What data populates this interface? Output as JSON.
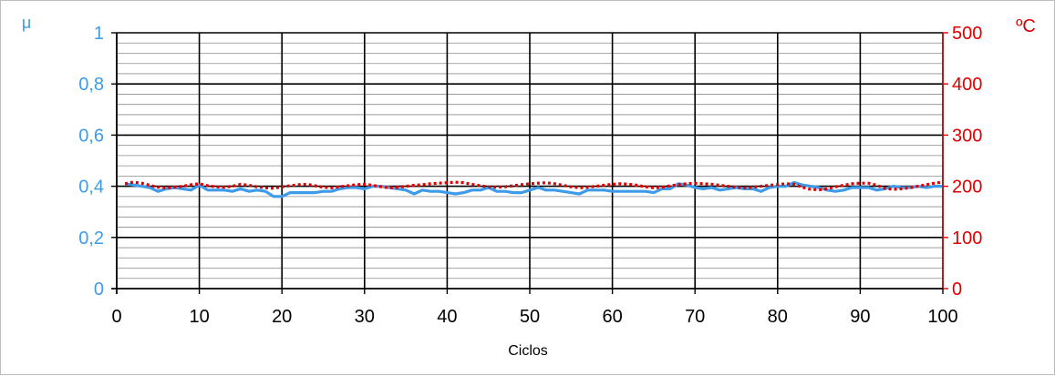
{
  "chart_data": {
    "type": "line",
    "xlabel": "Ciclos",
    "ylabel_left": "μ",
    "ylabel_right": "ºC",
    "xlim": [
      0,
      100
    ],
    "ylim_left": [
      0,
      1
    ],
    "ylim_right": [
      0,
      500
    ],
    "x_ticks": [
      "0",
      "10",
      "20",
      "30",
      "40",
      "50",
      "60",
      "70",
      "80",
      "90",
      "100"
    ],
    "y_left_ticks": [
      "0",
      "0,2",
      "0,4",
      "0,6",
      "0,8",
      "1"
    ],
    "y_right_ticks": [
      "0",
      "100",
      "200",
      "300",
      "400",
      "500"
    ],
    "grid": true,
    "colors": {
      "mu": "#3d9be9",
      "temperature": "#e00000",
      "grid": "#000000"
    },
    "series": [
      {
        "axis": "left",
        "style": "solid",
        "x": [
          1,
          2,
          3,
          4,
          5,
          6,
          7,
          8,
          9,
          10,
          11,
          12,
          13,
          14,
          15,
          16,
          17,
          18,
          19,
          20,
          21,
          22,
          23,
          24,
          25,
          26,
          27,
          28,
          29,
          30,
          31,
          32,
          33,
          34,
          35,
          36,
          37,
          38,
          39,
          40,
          41,
          42,
          43,
          44,
          45,
          46,
          47,
          48,
          49,
          50,
          51,
          52,
          53,
          54,
          55,
          56,
          57,
          58,
          59,
          60,
          61,
          62,
          63,
          64,
          65,
          66,
          67,
          68,
          69,
          70,
          71,
          72,
          73,
          74,
          75,
          76,
          77,
          78,
          79,
          80,
          81,
          82,
          83,
          84,
          85,
          86,
          87,
          88,
          89,
          90,
          91,
          92,
          93,
          94,
          95,
          96,
          97,
          98,
          99,
          100
        ],
        "y": [
          0.41,
          0.405,
          0.4,
          0.395,
          0.38,
          0.39,
          0.395,
          0.39,
          0.385,
          0.405,
          0.385,
          0.385,
          0.385,
          0.38,
          0.39,
          0.38,
          0.385,
          0.38,
          0.36,
          0.36,
          0.375,
          0.375,
          0.375,
          0.375,
          0.38,
          0.38,
          0.39,
          0.395,
          0.395,
          0.39,
          0.4,
          0.4,
          0.395,
          0.39,
          0.385,
          0.37,
          0.385,
          0.38,
          0.38,
          0.375,
          0.37,
          0.375,
          0.385,
          0.385,
          0.395,
          0.38,
          0.38,
          0.375,
          0.375,
          0.385,
          0.395,
          0.385,
          0.385,
          0.38,
          0.375,
          0.37,
          0.385,
          0.385,
          0.385,
          0.38,
          0.38,
          0.38,
          0.38,
          0.38,
          0.375,
          0.39,
          0.39,
          0.41,
          0.405,
          0.395,
          0.39,
          0.395,
          0.385,
          0.39,
          0.395,
          0.39,
          0.39,
          0.38,
          0.395,
          0.4,
          0.4,
          0.415,
          0.405,
          0.4,
          0.395,
          0.385,
          0.38,
          0.385,
          0.395,
          0.395,
          0.395,
          0.385,
          0.39,
          0.4,
          0.395,
          0.395,
          0.4,
          0.395,
          0.4,
          0.4
        ]
      },
      {
        "axis": "right",
        "style": "dotted",
        "x": [
          1,
          2,
          3,
          4,
          5,
          6,
          7,
          8,
          9,
          10,
          11,
          12,
          13,
          14,
          15,
          16,
          17,
          18,
          19,
          20,
          21,
          22,
          23,
          24,
          25,
          26,
          27,
          28,
          29,
          30,
          31,
          32,
          33,
          34,
          35,
          36,
          37,
          38,
          39,
          40,
          41,
          42,
          43,
          44,
          45,
          46,
          47,
          48,
          49,
          50,
          51,
          52,
          53,
          54,
          55,
          56,
          57,
          58,
          59,
          60,
          61,
          62,
          63,
          64,
          65,
          66,
          67,
          68,
          69,
          70,
          71,
          72,
          73,
          74,
          75,
          76,
          77,
          78,
          79,
          80,
          81,
          82,
          83,
          84,
          85,
          86,
          87,
          88,
          89,
          90,
          91,
          92,
          93,
          94,
          95,
          96,
          97,
          98,
          99,
          100
        ],
        "y": [
          205,
          208,
          206,
          202,
          198,
          197,
          198,
          200,
          203,
          205,
          201,
          199,
          198,
          200,
          204,
          202,
          199,
          197,
          196,
          199,
          201,
          203,
          204,
          201,
          198,
          197,
          199,
          201,
          203,
          204,
          202,
          199,
          197,
          198,
          200,
          202,
          203,
          205,
          206,
          207,
          208,
          207,
          204,
          201,
          199,
          198,
          199,
          201,
          203,
          205,
          206,
          207,
          205,
          202,
          199,
          197,
          198,
          200,
          202,
          204,
          205,
          204,
          202,
          199,
          197,
          198,
          201,
          203,
          205,
          206,
          205,
          204,
          202,
          200,
          198,
          197,
          198,
          200,
          202,
          203,
          205,
          204,
          198,
          194,
          193,
          195,
          199,
          202,
          205,
          206,
          206,
          202,
          196,
          194,
          195,
          197,
          200,
          203,
          206,
          208
        ]
      }
    ]
  }
}
